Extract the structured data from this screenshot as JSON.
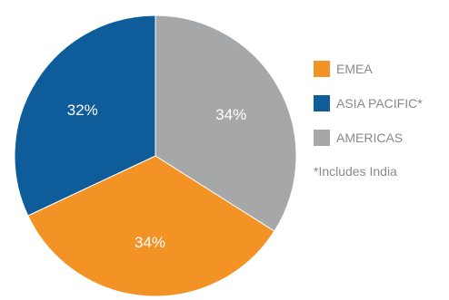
{
  "chart_data": {
    "type": "pie",
    "categories": [
      "EMEA",
      "ASIA PACIFIC*",
      "AMERICAS"
    ],
    "values": [
      34,
      32,
      34
    ],
    "value_labels": [
      "34%",
      "32%",
      "34%"
    ],
    "colors": [
      "#f39325",
      "#0e5d9a",
      "#a6a7a9"
    ],
    "legend": {
      "placement": "right",
      "entries": [
        "EMEA",
        "ASIA PACIFIC*",
        "AMERICAS"
      ]
    },
    "note": "*Includes India",
    "title": "",
    "xlabel": "",
    "ylabel": ""
  }
}
